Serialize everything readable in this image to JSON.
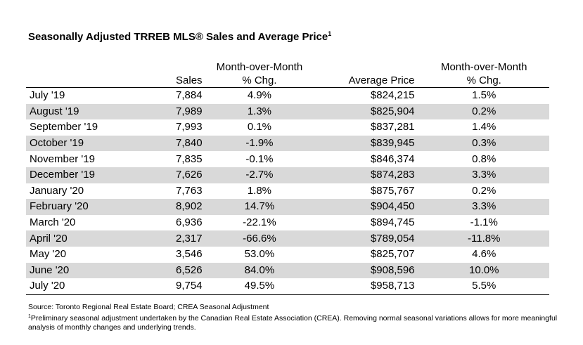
{
  "title": "Seasonally Adjusted TRREB MLS® Sales and Average Price",
  "title_footnote": "1",
  "columns": {
    "month": "",
    "sales": "Sales",
    "mom_sales_line1": "Month-over-Month",
    "mom_sales_line2": "% Chg.",
    "avg_price": "Average Price",
    "mom_price_line1": "Month-over-Month",
    "mom_price_line2": "% Chg."
  },
  "rows": [
    {
      "month": "July '19",
      "sales": "7,884",
      "mom_sales": "4.9%",
      "avg_price": "$824,215",
      "mom_price": "1.5%"
    },
    {
      "month": "August '19",
      "sales": "7,989",
      "mom_sales": "1.3%",
      "avg_price": "$825,904",
      "mom_price": "0.2%"
    },
    {
      "month": "September '19",
      "sales": "7,993",
      "mom_sales": "0.1%",
      "avg_price": "$837,281",
      "mom_price": "1.4%"
    },
    {
      "month": "October '19",
      "sales": "7,840",
      "mom_sales": "-1.9%",
      "avg_price": "$839,945",
      "mom_price": "0.3%"
    },
    {
      "month": "November '19",
      "sales": "7,835",
      "mom_sales": "-0.1%",
      "avg_price": "$846,374",
      "mom_price": "0.8%"
    },
    {
      "month": "December '19",
      "sales": "7,626",
      "mom_sales": "-2.7%",
      "avg_price": "$874,283",
      "mom_price": "3.3%"
    },
    {
      "month": "January '20",
      "sales": "7,763",
      "mom_sales": "1.8%",
      "avg_price": "$875,767",
      "mom_price": "0.2%"
    },
    {
      "month": "February '20",
      "sales": "8,902",
      "mom_sales": "14.7%",
      "avg_price": "$904,450",
      "mom_price": "3.3%"
    },
    {
      "month": "March '20",
      "sales": "6,936",
      "mom_sales": "-22.1%",
      "avg_price": "$894,745",
      "mom_price": "-1.1%"
    },
    {
      "month": "April '20",
      "sales": "2,317",
      "mom_sales": "-66.6%",
      "avg_price": "$789,054",
      "mom_price": "-11.8%"
    },
    {
      "month": "May '20",
      "sales": "3,546",
      "mom_sales": "53.0%",
      "avg_price": "$825,707",
      "mom_price": "4.6%"
    },
    {
      "month": "June '20",
      "sales": "6,526",
      "mom_sales": "84.0%",
      "avg_price": "$908,596",
      "mom_price": "10.0%"
    },
    {
      "month": "July '20",
      "sales": "9,754",
      "mom_sales": "49.5%",
      "avg_price": "$958,713",
      "mom_price": "5.5%"
    }
  ],
  "notes": {
    "source": "Source: Toronto Regional Real Estate Board; CREA Seasonal Adjustment",
    "footnote_marker": "1",
    "footnote_text": "Preliminary seasonal adjustment undertaken by the Canadian Real Estate Association (CREA).  Removing normal seasonal variations allows for more meaningful analysis of monthly changes and underlying trends."
  },
  "colors": {
    "stripe": "#d9d9d9",
    "text": "#000000",
    "background": "#ffffff"
  }
}
